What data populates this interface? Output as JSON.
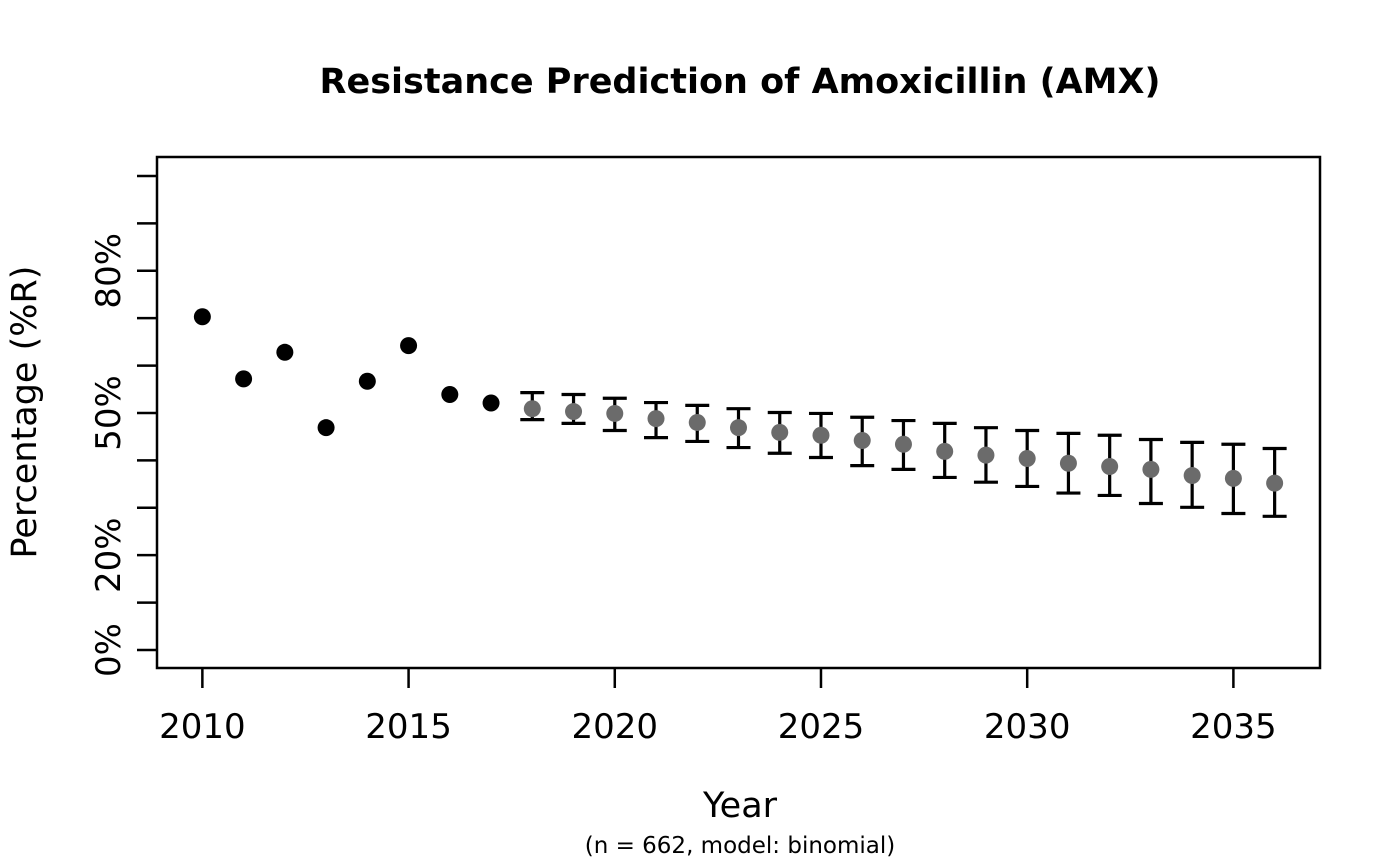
{
  "chart_data": {
    "type": "scatter",
    "title": "Resistance Prediction of Amoxicillin (AMX)",
    "xlabel": "Year",
    "ylabel": "Percentage (%R)",
    "subtitle": "(n = 662, model: binomial)",
    "grid": false,
    "legend": null,
    "xlim": [
      2008.9,
      2037.1
    ],
    "ylim": [
      -3.8,
      104.0
    ],
    "x_axis": {
      "ticks": [
        2010,
        2015,
        2020,
        2025,
        2030,
        2035
      ]
    },
    "y_axis": {
      "ticks": [
        0,
        10,
        20,
        30,
        40,
        50,
        60,
        70,
        80,
        90,
        100
      ],
      "labels": {
        "0": "0%",
        "20": "20%",
        "50": "50%",
        "80": "80%"
      }
    },
    "series": [
      {
        "name": "observed",
        "marker": "filled-circle",
        "color": "#000000",
        "x": [
          2010,
          2011,
          2012,
          2013,
          2014,
          2015,
          2016,
          2017
        ],
        "y": [
          70.3,
          57.2,
          62.8,
          46.9,
          56.7,
          64.2,
          53.9,
          52.1
        ]
      },
      {
        "name": "predicted",
        "marker": "filled-circle-with-error-bars",
        "color": "#6b6b6b",
        "errorbar_color": "#000000",
        "x": [
          2018,
          2019,
          2020,
          2021,
          2022,
          2023,
          2024,
          2025,
          2026,
          2027,
          2028,
          2029,
          2030,
          2031,
          2032,
          2033,
          2034,
          2035,
          2036
        ],
        "y": [
          50.9,
          50.3,
          49.9,
          48.8,
          48.0,
          46.9,
          45.9,
          45.3,
          44.2,
          43.4,
          41.9,
          41.1,
          40.4,
          39.4,
          38.7,
          38.1,
          36.8,
          36.2,
          35.2
        ],
        "ci_low": [
          48.6,
          47.8,
          46.3,
          44.8,
          44.0,
          42.7,
          41.5,
          40.6,
          38.9,
          38.1,
          36.4,
          35.4,
          34.5,
          33.1,
          32.6,
          30.9,
          30.1,
          28.8,
          28.2
        ],
        "ci_high": [
          54.3,
          53.9,
          53.1,
          52.2,
          51.6,
          50.9,
          50.1,
          49.9,
          49.1,
          48.4,
          47.8,
          46.9,
          46.3,
          45.7,
          45.3,
          44.4,
          43.8,
          43.4,
          42.5
        ]
      }
    ]
  }
}
